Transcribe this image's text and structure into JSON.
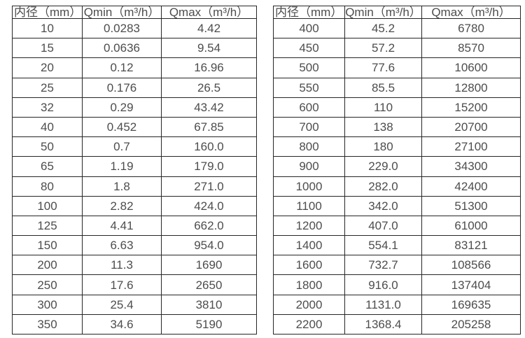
{
  "colors": {
    "background": "#ffffff",
    "border": "#262626",
    "text": "#4d4d4d"
  },
  "left_table": {
    "headers": [
      "内径（mm）",
      "Qmin（m³/h）",
      "Qmax（m³/h）"
    ],
    "rows": [
      [
        "10",
        "0.0283",
        "4.42"
      ],
      [
        "15",
        "0.0636",
        "9.54"
      ],
      [
        "20",
        "0.12",
        "16.96"
      ],
      [
        "25",
        "0.176",
        "26.5"
      ],
      [
        "32",
        "0.29",
        "43.42"
      ],
      [
        "40",
        "0.452",
        "67.85"
      ],
      [
        "50",
        "0.7",
        "160.0"
      ],
      [
        "65",
        "1.19",
        "179.0"
      ],
      [
        "80",
        "1.8",
        "271.0"
      ],
      [
        "100",
        "2.82",
        "424.0"
      ],
      [
        "125",
        "4.41",
        "662.0"
      ],
      [
        "150",
        "6.63",
        "954.0"
      ],
      [
        "200",
        "11.3",
        "1690"
      ],
      [
        "250",
        "17.6",
        "2650"
      ],
      [
        "300",
        "25.4",
        "3810"
      ],
      [
        "350",
        "34.6",
        "5190"
      ]
    ]
  },
  "right_table": {
    "headers": [
      "内径（mm）",
      "Qmin（m³/h）",
      "Qmax（m³/h）"
    ],
    "rows": [
      [
        "400",
        "45.2",
        "6780"
      ],
      [
        "450",
        "57.2",
        "8570"
      ],
      [
        "500",
        "77.6",
        "10600"
      ],
      [
        "550",
        "85.5",
        "12800"
      ],
      [
        "600",
        "110",
        "15200"
      ],
      [
        "700",
        "138",
        "20700"
      ],
      [
        "800",
        "180",
        "27100"
      ],
      [
        "900",
        "229.0",
        "34300"
      ],
      [
        "1000",
        "282.0",
        "42400"
      ],
      [
        "1100",
        "342.0",
        "51300"
      ],
      [
        "1200",
        "407.0",
        "61000"
      ],
      [
        "1400",
        "554.1",
        "83121"
      ],
      [
        "1600",
        "732.7",
        "108566"
      ],
      [
        "1800",
        "916.0",
        "137404"
      ],
      [
        "2000",
        "1131.0",
        "169635"
      ],
      [
        "2200",
        "1368.4",
        "205258"
      ]
    ]
  }
}
